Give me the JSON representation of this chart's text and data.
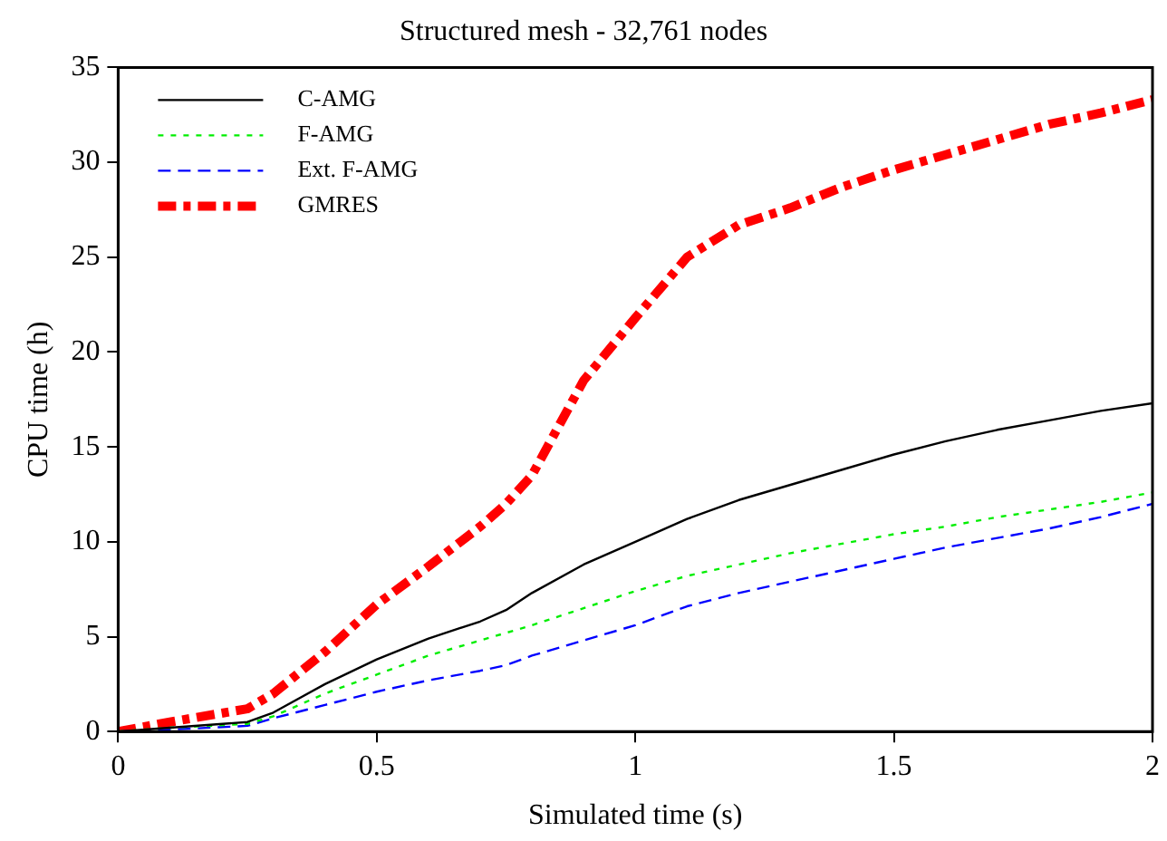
{
  "chart_data": {
    "type": "line",
    "title": "Structured mesh - 32,761 nodes",
    "xlabel": "Simulated time (s)",
    "ylabel": "CPU time (h)",
    "x": [
      0,
      0.1,
      0.25,
      0.3,
      0.4,
      0.5,
      0.6,
      0.7,
      0.75,
      0.8,
      0.9,
      1.0,
      1.1,
      1.2,
      1.3,
      1.4,
      1.5,
      1.6,
      1.7,
      1.8,
      1.9,
      2.0
    ],
    "series": [
      {
        "name": "C-AMG",
        "color": "#000000",
        "line_style": "solid",
        "values": [
          0,
          0.2,
          0.5,
          1,
          2.5,
          3.8,
          4.9,
          5.8,
          6.4,
          7.3,
          8.8,
          10,
          11.2,
          12.2,
          13,
          13.8,
          14.6,
          15.3,
          15.9,
          16.4,
          16.9,
          17.3
        ]
      },
      {
        "name": "F-AMG",
        "color": "#00ee00",
        "line_style": "dotted",
        "values": [
          0,
          0.2,
          0.4,
          0.8,
          2,
          3,
          4,
          4.8,
          5.2,
          5.6,
          6.5,
          7.4,
          8.2,
          8.8,
          9.4,
          9.9,
          10.4,
          10.8,
          11.3,
          11.7,
          12.1,
          12.6
        ]
      },
      {
        "name": "Ext. F-AMG",
        "color": "#0000ff",
        "line_style": "dashed",
        "values": [
          0,
          0.1,
          0.3,
          0.7,
          1.4,
          2.1,
          2.7,
          3.2,
          3.5,
          4,
          4.8,
          5.6,
          6.6,
          7.3,
          7.9,
          8.5,
          9.1,
          9.7,
          10.2,
          10.7,
          11.3,
          12
        ]
      },
      {
        "name": "GMRES",
        "color": "#ff0000",
        "line_style": "dashdot",
        "values": [
          0,
          0.5,
          1.2,
          2,
          4.2,
          6.7,
          8.7,
          10.8,
          12,
          13.5,
          18.5,
          21.8,
          25,
          26.7,
          27.6,
          28.7,
          29.6,
          30.4,
          31.2,
          32,
          32.6,
          33.3
        ]
      }
    ],
    "xlim": [
      0,
      2
    ],
    "xticks": [
      0,
      0.5,
      1,
      1.5,
      2
    ],
    "ylim": [
      0,
      35
    ],
    "yticks": [
      0,
      5,
      10,
      15,
      20,
      25,
      30,
      35
    ],
    "grid": false,
    "legend": "top left",
    "marker": "none"
  }
}
